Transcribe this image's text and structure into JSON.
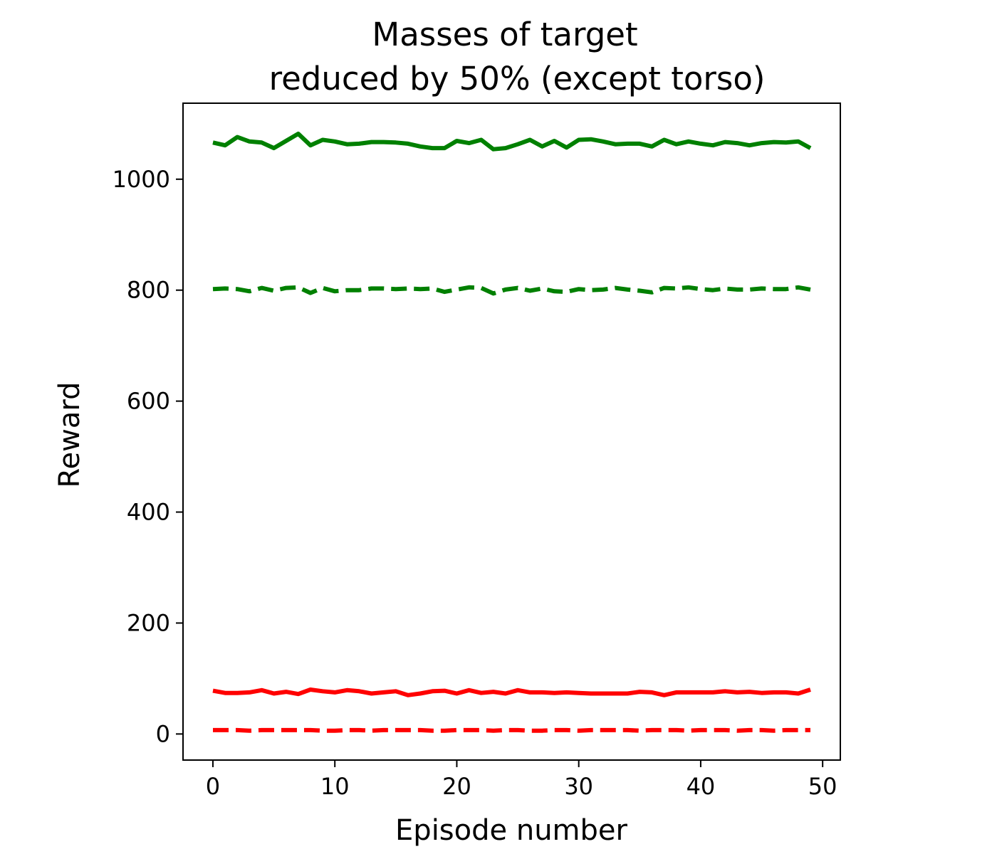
{
  "chart_data": {
    "type": "line",
    "title_lines": [
      "Masses of target",
      "reduced by 50% (except torso)"
    ],
    "xlabel": "Episode number",
    "ylabel": "Reward",
    "xlim": [
      -2.45,
      51.45
    ],
    "ylim": [
      -47,
      1137
    ],
    "xticks": [
      0,
      10,
      20,
      30,
      40,
      50
    ],
    "yticks": [
      0,
      200,
      400,
      600,
      800,
      1000
    ],
    "grid": false,
    "legend": "none",
    "series": [
      {
        "color": "#008000",
        "dash": "solid",
        "values": [
          1066,
          1061,
          1076,
          1068,
          1066,
          1056,
          1069,
          1082,
          1061,
          1071,
          1068,
          1063,
          1064,
          1067,
          1067,
          1066,
          1064,
          1059,
          1056,
          1056,
          1069,
          1065,
          1071,
          1054,
          1056,
          1063,
          1071,
          1059,
          1069,
          1057,
          1071,
          1072,
          1068,
          1063,
          1064,
          1064,
          1059,
          1071,
          1063,
          1068,
          1064,
          1061,
          1067,
          1065,
          1061,
          1065,
          1067,
          1066,
          1068,
          1056
        ]
      },
      {
        "color": "#008000",
        "dash": "dashed",
        "values": [
          802,
          803,
          802,
          798,
          804,
          799,
          804,
          805,
          795,
          804,
          798,
          800,
          800,
          803,
          803,
          802,
          803,
          802,
          803,
          797,
          801,
          805,
          804,
          794,
          801,
          804,
          799,
          803,
          798,
          797,
          802,
          800,
          801,
          804,
          801,
          799,
          796,
          804,
          803,
          805,
          802,
          800,
          803,
          801,
          801,
          803,
          802,
          802,
          805,
          801
        ]
      },
      {
        "color": "#ff0000",
        "dash": "solid",
        "values": [
          78,
          74,
          74,
          75,
          79,
          73,
          76,
          72,
          80,
          77,
          75,
          79,
          77,
          73,
          75,
          77,
          70,
          73,
          77,
          78,
          73,
          79,
          74,
          76,
          73,
          79,
          75,
          75,
          74,
          75,
          74,
          73,
          73,
          73,
          73,
          76,
          75,
          70,
          75,
          75,
          75,
          75,
          77,
          75,
          76,
          74,
          75,
          75,
          73,
          80
        ]
      },
      {
        "color": "#ff0000",
        "dash": "dashed",
        "values": [
          7,
          7,
          7,
          6,
          7,
          7,
          7,
          7,
          7,
          6,
          6,
          7,
          7,
          6,
          7,
          7,
          7,
          7,
          6,
          6,
          7,
          7,
          7,
          6,
          7,
          7,
          6,
          6,
          7,
          7,
          6,
          7,
          7,
          7,
          7,
          6,
          7,
          7,
          7,
          6,
          7,
          7,
          7,
          6,
          7,
          7,
          6,
          7,
          7,
          7
        ]
      }
    ]
  }
}
